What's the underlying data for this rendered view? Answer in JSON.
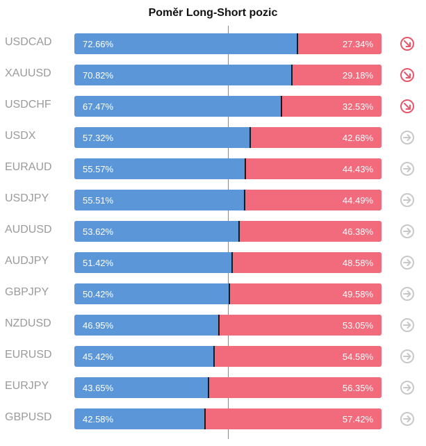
{
  "title": "Poměr Long-Short pozic",
  "colors": {
    "long": "#5b97d8",
    "short": "#f16b7c",
    "icon_down": "#e8566a",
    "icon_neutral": "#c8c8c8"
  },
  "chart_data": {
    "type": "bar",
    "orientation": "horizontal-stacked-100",
    "title": "Poměr Long-Short pozic",
    "categories": [
      "USDCAD",
      "XAUUSD",
      "USDCHF",
      "USDX",
      "EURAUD",
      "USDJPY",
      "AUDUSD",
      "AUDJPY",
      "GBPJPY",
      "NZDUSD",
      "EURUSD",
      "EURJPY",
      "GBPUSD"
    ],
    "series": [
      {
        "values": [
          72.66,
          70.82,
          67.47,
          57.32,
          55.57,
          55.51,
          53.62,
          51.42,
          50.42,
          46.95,
          45.42,
          43.65,
          42.58
        ]
      },
      {
        "values": [
          27.34,
          29.18,
          32.53,
          42.68,
          44.43,
          44.49,
          46.38,
          48.58,
          49.58,
          53.05,
          54.58,
          56.35,
          57.42
        ]
      }
    ],
    "long_labels": [
      "72.66%",
      "70.82%",
      "67.47%",
      "57.32%",
      "55.57%",
      "55.51%",
      "53.62%",
      "51.42%",
      "50.42%",
      "46.95%",
      "45.42%",
      "43.65%",
      "42.58%"
    ],
    "short_labels": [
      "27.34%",
      "29.18%",
      "32.53%",
      "42.68%",
      "44.43%",
      "44.49%",
      "46.38%",
      "48.58%",
      "49.58%",
      "53.05%",
      "54.58%",
      "56.35%",
      "57.42%"
    ],
    "icons": [
      "arrow-down-right-icon",
      "arrow-down-right-icon",
      "arrow-down-right-icon",
      "arrow-right-icon",
      "arrow-right-icon",
      "arrow-right-icon",
      "arrow-right-icon",
      "arrow-right-icon",
      "arrow-right-icon",
      "arrow-right-icon",
      "arrow-right-icon",
      "arrow-right-icon",
      "arrow-right-icon"
    ],
    "xlim": [
      0,
      100
    ]
  }
}
